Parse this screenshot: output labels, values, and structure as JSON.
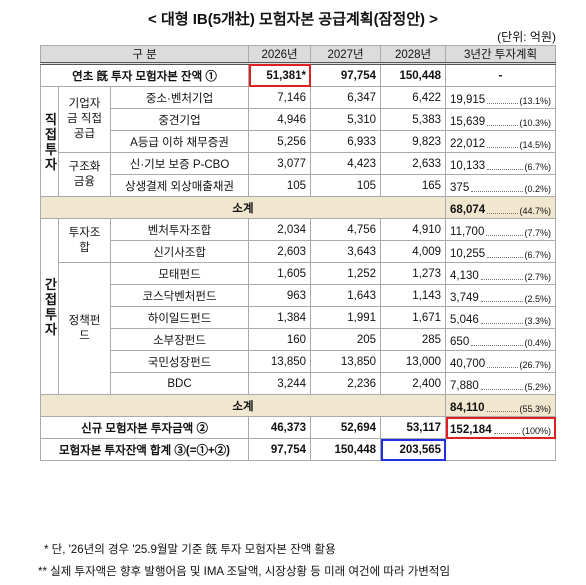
{
  "title": "< 대형 IB(5개社) 모험자본 공급계획(잠정안) >",
  "unit": "(단위: 억원)",
  "table": {
    "header": [
      "구 분",
      "2026년",
      "2027년",
      "2028년",
      "3년간 투자계획"
    ],
    "opening": {
      "label": "연초 旣 투자 모험자본 잔액 ①",
      "values": [
        "51,381*",
        "97,754",
        "150,448"
      ],
      "total": "-"
    },
    "sections": [
      {
        "label": "직접투자",
        "groups": [
          {
            "label": "기업자금 직접공급",
            "rows": [
              {
                "name": "중소·벤처기업",
                "values": [
                  "7,146",
                  "6,347",
                  "6,422"
                ],
                "total": "19,915",
                "share": "(13.1%)"
              },
              {
                "name": "중견기업",
                "values": [
                  "4,946",
                  "5,310",
                  "5,383"
                ],
                "total": "15,639",
                "share": "(10.3%)"
              },
              {
                "name": "A등급 이하 채무증권",
                "values": [
                  "5,256",
                  "6,933",
                  "9,823"
                ],
                "total": "22,012",
                "share": "(14.5%)"
              }
            ]
          },
          {
            "label": "구조화 금융",
            "rows": [
              {
                "name": "신·기보 보증 P-CBO",
                "values": [
                  "3,077",
                  "4,423",
                  "2,633"
                ],
                "total": "10,133",
                "share": "(6.7%)"
              },
              {
                "name": "상생결제 외상매출채권",
                "values": [
                  "105",
                  "105",
                  "165"
                ],
                "total": "375",
                "share": "(0.2%)"
              }
            ]
          }
        ],
        "subtotal": {
          "label": "소계",
          "total": "68,074",
          "share": "(44.7%)"
        }
      },
      {
        "label": "간접투자",
        "groups": [
          {
            "label": "투자조합",
            "rows": [
              {
                "name": "벤처투자조합",
                "values": [
                  "2,034",
                  "4,756",
                  "4,910"
                ],
                "total": "11,700",
                "share": "(7.7%)"
              },
              {
                "name": "신기사조합",
                "values": [
                  "2,603",
                  "3,643",
                  "4,009"
                ],
                "total": "10,255",
                "share": "(6.7%)"
              }
            ]
          },
          {
            "label": "정책펀드",
            "rows": [
              {
                "name": "모태펀드",
                "values": [
                  "1,605",
                  "1,252",
                  "1,273"
                ],
                "total": "4,130",
                "share": "(2.7%)"
              },
              {
                "name": "코스닥벤처펀드",
                "values": [
                  "963",
                  "1,643",
                  "1,143"
                ],
                "total": "3,749",
                "share": "(2.5%)"
              },
              {
                "name": "하이일드펀드",
                "values": [
                  "1,384",
                  "1,991",
                  "1,671"
                ],
                "total": "5,046",
                "share": "(3.3%)"
              },
              {
                "name": "소부장펀드",
                "values": [
                  "160",
                  "205",
                  "285"
                ],
                "total": "650",
                "share": "(0.4%)"
              },
              {
                "name": "국민성장펀드",
                "values": [
                  "13,850",
                  "13,850",
                  "13,000"
                ],
                "total": "40,700",
                "share": "(26.7%)"
              },
              {
                "name": "BDC",
                "values": [
                  "3,244",
                  "2,236",
                  "2,400"
                ],
                "total": "7,880",
                "share": "(5.2%)"
              }
            ]
          }
        ],
        "subtotal": {
          "label": "소계",
          "total": "84,110",
          "share": "(55.3%)"
        }
      }
    ],
    "new_investment": {
      "label": "신규 모험자본 투자금액 ②",
      "values": [
        "46,373",
        "52,694",
        "53,117"
      ],
      "total": "152,184",
      "share": "(100%)"
    },
    "balance_sum": {
      "label": "모험자본 투자잔액 합계 ③(=①+②)",
      "values": [
        "97,754",
        "150,448",
        "203,565"
      ]
    }
  },
  "notes": [
    "* 단, '26년의 경우 '25.9월말 기준 旣 투자 모험자본 잔액 활용",
    "** 실제 투자액은 향후 발행어음 및 IMA 조달액, 시장상황 등 미래 여건에 따라 가변적임"
  ]
}
